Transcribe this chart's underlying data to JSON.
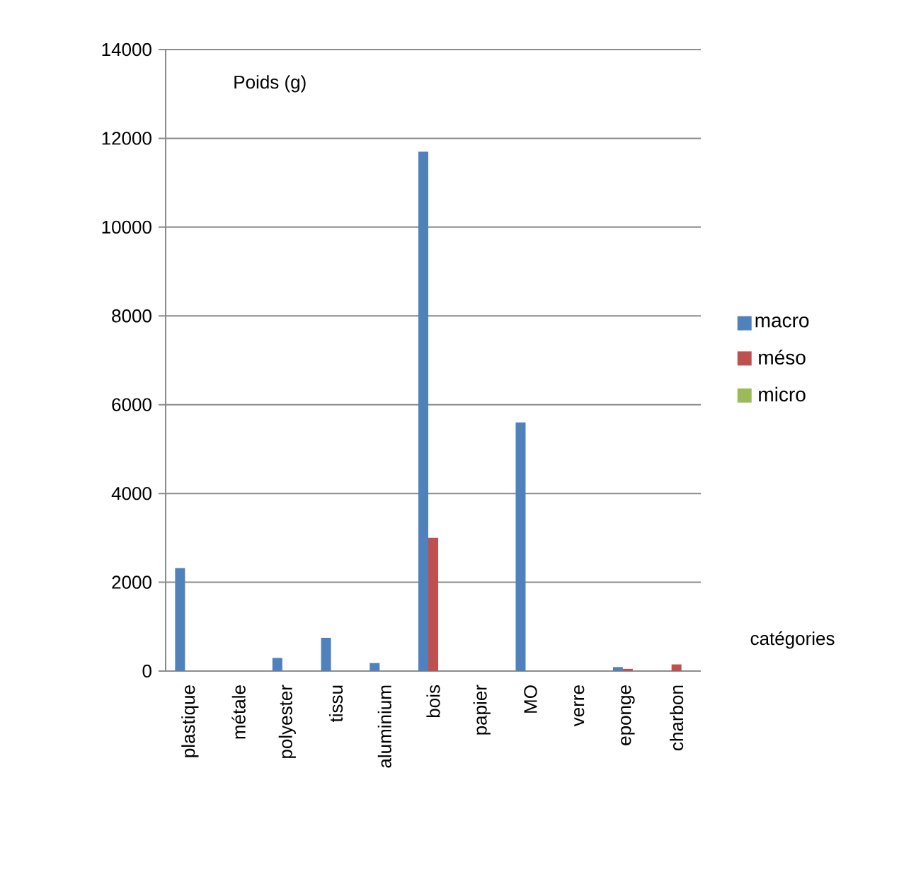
{
  "chart_data": {
    "type": "bar",
    "xlabel": "catégories",
    "ylabel": "Poids (g)",
    "categories": [
      "plastique",
      "métale",
      "polyester",
      "tissu",
      "aluminium",
      "bois",
      "papier",
      "MO",
      "verre",
      "eponge",
      "charbon"
    ],
    "series": [
      {
        "name": "macro",
        "color": "#4f81bd",
        "values": [
          2320,
          0,
          295,
          750,
          180,
          11700,
          0,
          5600,
          0,
          90,
          0
        ]
      },
      {
        "name": "méso",
        "color": "#c0504d",
        "values": [
          0,
          0,
          0,
          0,
          0,
          3000,
          0,
          0,
          0,
          50,
          150
        ]
      },
      {
        "name": "micro",
        "color": "#9bbb59",
        "values": [
          0,
          0,
          0,
          0,
          0,
          0,
          0,
          0,
          0,
          0,
          0
        ]
      }
    ],
    "ylim": [
      0,
      14000
    ],
    "yticks": [
      0,
      2000,
      4000,
      6000,
      8000,
      10000,
      12000,
      14000
    ],
    "grid": "y",
    "legend": "right"
  }
}
